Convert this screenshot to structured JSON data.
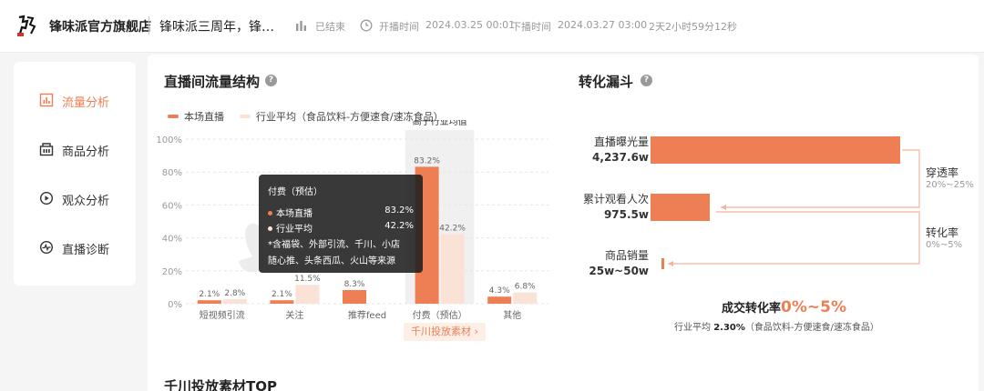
{
  "header": {
    "shop_name": "锋味派官方旗舰店",
    "live_title": "锋味派三周年，锋…",
    "status": "已结束",
    "start_label": "开播时间",
    "start_time": "2024.03.25 00:01",
    "end_label": "下播时间",
    "end_time": "2024.03.27 03:00",
    "duration": "2天2小时59分12秒"
  },
  "sidebar": {
    "items": [
      {
        "label": "流量分析",
        "icon": "chart-icon",
        "active": true
      },
      {
        "label": "商品分析",
        "icon": "goods-icon",
        "active": false
      },
      {
        "label": "观众分析",
        "icon": "play-circle-icon",
        "active": false
      },
      {
        "label": "直播诊断",
        "icon": "diagnosis-icon",
        "active": false
      }
    ]
  },
  "traffic": {
    "title": "直播间流量结构",
    "legend": {
      "current": "本场直播",
      "industry": "行业平均（食品饮料-方便速食/速冻食品）"
    },
    "highlight_label": "高于行业均值",
    "material_button": "千川投放素材 ›",
    "tooltip": {
      "title": "付费（预估）",
      "row1_label": "本场直播",
      "row1_value": "83.2%",
      "row2_label": "行业平均",
      "row2_value": "42.2%",
      "note_line1": "*含福袋、外部引流、千川、小店",
      "note_line2": "随心推、头条西瓜、火山等来源"
    }
  },
  "chart_data": {
    "type": "bar",
    "categories": [
      "短视频引流",
      "关注",
      "推荐feed",
      "付费（预估）",
      "其他"
    ],
    "series": [
      {
        "name": "本场直播",
        "values": [
          2.1,
          2.1,
          8.3,
          83.2,
          4.3
        ],
        "labels": [
          "2.1%",
          "2.1%",
          "8.3%",
          "83.2%",
          "4.3%"
        ]
      },
      {
        "name": "行业平均（食品饮料-方便速食/速冻食品）",
        "values": [
          2.8,
          11.5,
          0,
          42.2,
          6.8
        ],
        "labels": [
          "2.8%",
          "11.5%",
          "",
          "42.2%",
          "6.8%"
        ]
      }
    ],
    "yticks": [
      "100%",
      "80%",
      "60%",
      "40%",
      "20%",
      "0%"
    ],
    "ylim": [
      0,
      100
    ],
    "highlight_index": 3,
    "colors": {
      "current": "#ee7f55",
      "industry": "#fbe2d6"
    }
  },
  "funnel": {
    "title": "转化漏斗",
    "stages": [
      {
        "label": "直播曝光量",
        "value": "4,237.6w"
      },
      {
        "label": "累计观看人次",
        "value": "975.5w"
      },
      {
        "label": "商品销量",
        "value": "25w~50w"
      }
    ],
    "rates": [
      {
        "label": "穿透率",
        "range": "20%~25%"
      },
      {
        "label": "转化率",
        "range": "0%~5%"
      }
    ],
    "conversion_label": "成交转化率",
    "conversion_value": "0%~5%",
    "avg_prefix": "行业平均",
    "avg_value": "2.30%",
    "avg_suffix": "（食品饮料-方便速食/速冻食品）"
  },
  "top_section": {
    "title": "千川投放素材TOP"
  }
}
